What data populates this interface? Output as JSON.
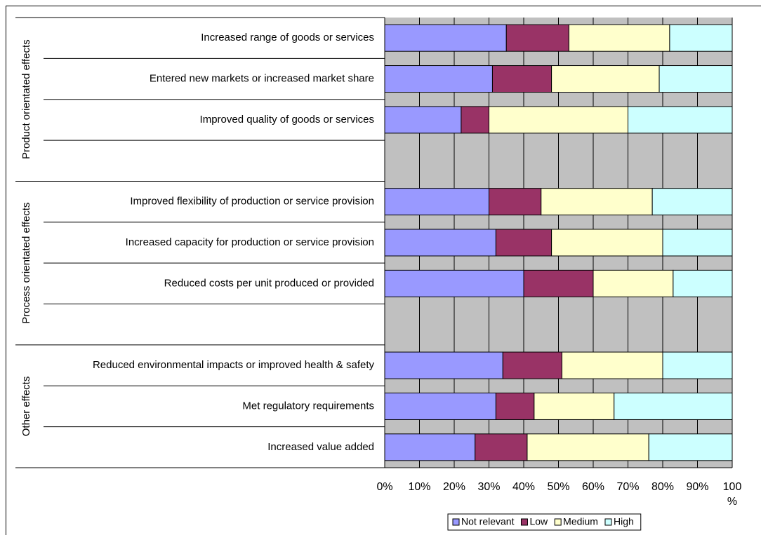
{
  "chart_data": {
    "type": "stacked_bar_horizontal",
    "categories": [
      "Increased range of goods or services",
      "Entered new markets or increased market share",
      "Improved quality of goods or services",
      null,
      "Improved flexibility of production or service provision",
      "Increased capacity for production or service provision",
      "Reduced costs per unit produced or provided",
      null,
      "Reduced environmental impacts or improved health & safety",
      "Met regulatory requirements",
      "Increased value added"
    ],
    "groups": [
      "Product orientated effects",
      "Process orientated effects",
      "Other effects"
    ],
    "series": [
      {
        "name": "Not relevant",
        "color": "#9999ff",
        "values": [
          35,
          31,
          22,
          null,
          30,
          32,
          40,
          null,
          34,
          32,
          26
        ]
      },
      {
        "name": "Low",
        "color": "#993366",
        "values": [
          18,
          17,
          8,
          null,
          15,
          16,
          20,
          null,
          17,
          11,
          15
        ]
      },
      {
        "name": "Medium",
        "color": "#ffffcc",
        "values": [
          29,
          31,
          40,
          null,
          32,
          32,
          23,
          null,
          29,
          23,
          35
        ]
      },
      {
        "name": "High",
        "color": "#ccffff",
        "values": [
          18,
          21,
          30,
          null,
          23,
          20,
          17,
          null,
          20,
          34,
          24
        ]
      }
    ],
    "xlim": [
      0,
      100
    ],
    "xticks": [
      {
        "value": 0,
        "label": "0%"
      },
      {
        "value": 10,
        "label": "10%"
      },
      {
        "value": 20,
        "label": "20%"
      },
      {
        "value": 30,
        "label": "30%"
      },
      {
        "value": 40,
        "label": "40%"
      },
      {
        "value": 50,
        "label": "50%"
      },
      {
        "value": 60,
        "label": "60%"
      },
      {
        "value": 70,
        "label": "70%"
      },
      {
        "value": 80,
        "label": "80%"
      },
      {
        "value": 90,
        "label": "90%"
      },
      {
        "value": 100,
        "label": "100 %"
      }
    ],
    "grid": true,
    "legend": "bottom"
  }
}
